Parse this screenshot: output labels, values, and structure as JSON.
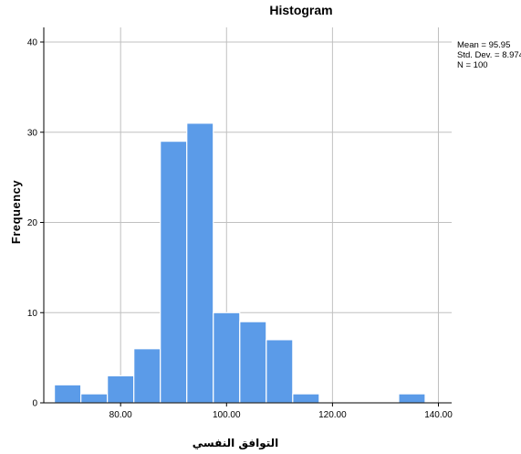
{
  "chart_data": {
    "type": "bar",
    "title": "Histogram",
    "xlabel": "التوافق النفسي",
    "ylabel": "Frequency",
    "bin_width": 5,
    "bins": [
      {
        "start": 67.5,
        "end": 72.5,
        "count": 2
      },
      {
        "start": 72.5,
        "end": 77.5,
        "count": 1
      },
      {
        "start": 77.5,
        "end": 82.5,
        "count": 3
      },
      {
        "start": 82.5,
        "end": 87.5,
        "count": 6
      },
      {
        "start": 87.5,
        "end": 92.5,
        "count": 29
      },
      {
        "start": 92.5,
        "end": 97.5,
        "count": 31
      },
      {
        "start": 97.5,
        "end": 102.5,
        "count": 10
      },
      {
        "start": 102.5,
        "end": 107.5,
        "count": 9
      },
      {
        "start": 107.5,
        "end": 112.5,
        "count": 7
      },
      {
        "start": 112.5,
        "end": 117.5,
        "count": 1
      },
      {
        "start": 117.5,
        "end": 122.5,
        "count": 0
      },
      {
        "start": 122.5,
        "end": 127.5,
        "count": 0
      },
      {
        "start": 127.5,
        "end": 132.5,
        "count": 0
      },
      {
        "start": 132.5,
        "end": 137.5,
        "count": 1
      }
    ],
    "x_ticks": [
      {
        "value": 80,
        "label": "80.00"
      },
      {
        "value": 100,
        "label": "100.00"
      },
      {
        "value": 120,
        "label": "120.00"
      },
      {
        "value": 140,
        "label": "140.00"
      }
    ],
    "y_ticks": [
      {
        "value": 0,
        "label": "0"
      },
      {
        "value": 10,
        "label": "10"
      },
      {
        "value": 20,
        "label": "20"
      },
      {
        "value": 30,
        "label": "30"
      },
      {
        "value": 40,
        "label": "40"
      }
    ],
    "xlim": [
      65.5,
      142.5
    ],
    "ylim": [
      0,
      40
    ],
    "grid": true,
    "bar_color": "#5b9be8",
    "bar_edge_color": "#ffffff",
    "grid_color": "#c0c0c0",
    "stats": {
      "mean": "Mean = 95.95",
      "std_dev": "Std. Dev. = 8.974",
      "n": "N = 100"
    },
    "legend_placement": "top-right"
  }
}
